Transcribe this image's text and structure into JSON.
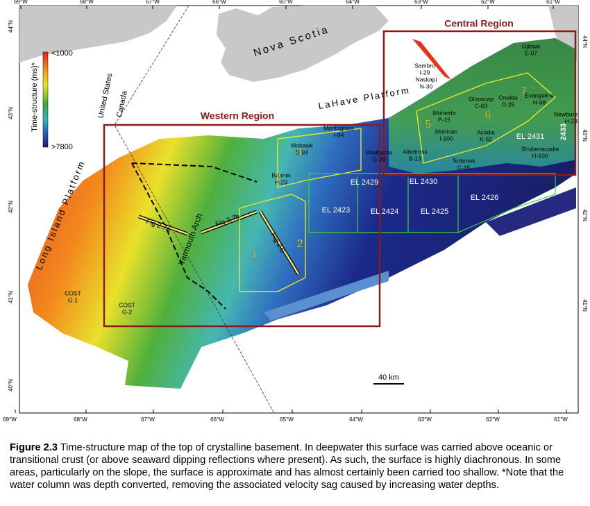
{
  "map": {
    "lon_labels_top": [
      "69°W",
      "68°W",
      "67°W",
      "66°W",
      "65°W",
      "64°W",
      "63°W",
      "62°W",
      "61°W"
    ],
    "lon_labels_bottom": [
      "69°W",
      "68°W",
      "67°W",
      "66°W",
      "65°W",
      "64°W",
      "63°W",
      "62°W",
      "61°W"
    ],
    "lat_labels_left": [
      "44°N",
      "43°N",
      "42°N",
      "41°N",
      "40°N"
    ],
    "lat_labels_right": [
      "44°N",
      "43°N",
      "42°N",
      "41°N"
    ],
    "legend": {
      "title": "Time-structure (ms)*",
      "max_label": "<1000",
      "min_label": ">7800"
    },
    "regions": [
      {
        "label": "Western Region"
      },
      {
        "label": "Central Region"
      }
    ],
    "place_labels": [
      "Nova Scotia",
      "LaHave Platform",
      "Long Island Platform",
      "United States",
      "Canada",
      "Yarmouth Arch"
    ],
    "wells": [
      {
        "name": "Sambro",
        "id": "I-29"
      },
      {
        "name": "Naskapi",
        "id": "N-30"
      },
      {
        "name": "Ojibwa",
        "id": "E-07"
      },
      {
        "name": "Glooscap",
        "id": "C-63"
      },
      {
        "name": "Oneida",
        "id": "O-25"
      },
      {
        "name": "Evangeline",
        "id": "H-98"
      },
      {
        "name": "Moheida",
        "id": "P-15"
      },
      {
        "name": "Mohican",
        "id": "I-100"
      },
      {
        "name": "Acadia",
        "id": "K-62"
      },
      {
        "name": "Newburn",
        "id": "H-23"
      },
      {
        "name": "Shubenacadie",
        "id": "H-100"
      },
      {
        "name": "Torbrook",
        "id": "C-15"
      },
      {
        "name": "Albatross",
        "id": "B-13"
      },
      {
        "name": "Shelburne",
        "id": "G-29"
      },
      {
        "name": "Montagnais",
        "id": "I-94"
      },
      {
        "name": "Mohawk",
        "id": "B-93"
      },
      {
        "name": "Bonnet",
        "id": "P-23"
      },
      {
        "name": "COST",
        "id": "G-1"
      },
      {
        "name": "COST",
        "id": "G-2"
      }
    ],
    "blocks": [
      "EL 2429",
      "EL 2430",
      "EL 2426",
      "EL 2423",
      "EL 2424",
      "EL 2425",
      "EL 2431",
      "2433"
    ],
    "areas": [
      "1",
      "2",
      "3",
      "4",
      "5",
      "6",
      "7"
    ],
    "figure_lines": [
      "Fig 2.7a",
      "Fig 2.7b",
      "Fig 2.6"
    ],
    "scale_bar": "40 km"
  },
  "caption": {
    "label": "Figure 2.3",
    "text": "Time-structure map of the top of crystalline basement.  In deepwater this surface was carried above oceanic or transitional crust (or above seaward dipping reflections where present).  As such, the surface is highly diachronous.  In some areas, particularly on the slope, the surface is approximate and has almost certainly been carried too shallow.  *Note that the water column was depth converted, removing the associated velocity sag caused by increasing water depths."
  }
}
